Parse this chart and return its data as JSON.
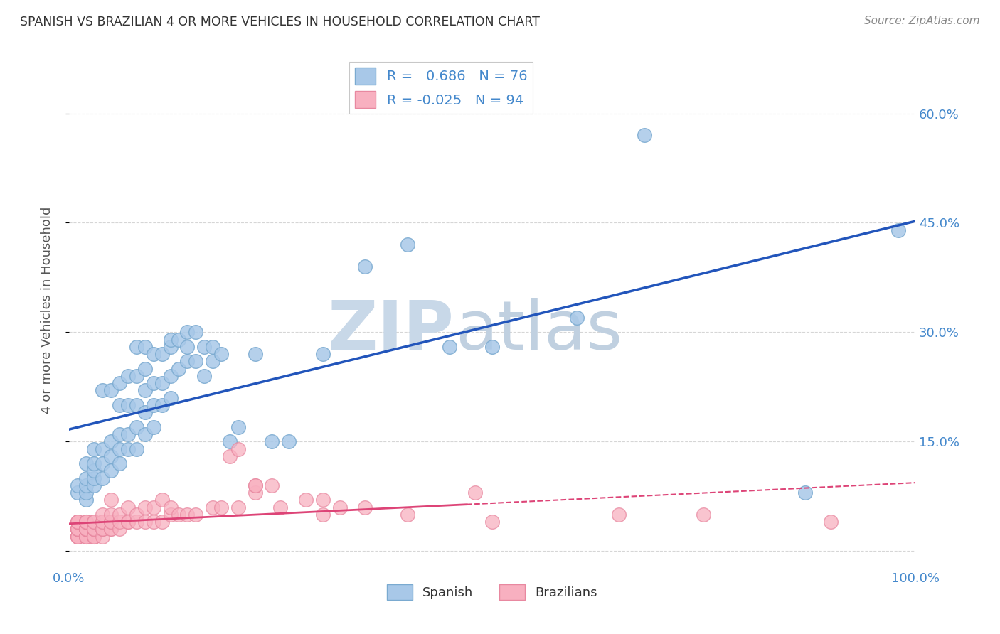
{
  "title": "SPANISH VS BRAZILIAN 4 OR MORE VEHICLES IN HOUSEHOLD CORRELATION CHART",
  "source": "Source: ZipAtlas.com",
  "ylabel": "4 or more Vehicles in Household",
  "xlim": [
    0.0,
    1.0
  ],
  "ylim": [
    -0.02,
    0.68
  ],
  "ytick_positions": [
    0.0,
    0.15,
    0.3,
    0.45,
    0.6
  ],
  "ytick_labels": [
    "",
    "15.0%",
    "30.0%",
    "45.0%",
    "60.0%"
  ],
  "spanish_R": 0.686,
  "spanish_N": 76,
  "brazilian_R": -0.025,
  "brazilian_N": 94,
  "spanish_color": "#a8c8e8",
  "spanish_edge": "#7aaad0",
  "brazilian_color": "#f8b0c0",
  "brazilian_edge": "#e888a0",
  "trendline_spanish_color": "#2255bb",
  "trendline_brazilian_color": "#dd4477",
  "watermark_zip_color": "#c8d8e8",
  "watermark_atlas_color": "#c0d0e0",
  "legend_label_spanish": "Spanish",
  "legend_label_brazilian": "Brazilians",
  "spanish_x": [
    0.01,
    0.01,
    0.02,
    0.02,
    0.02,
    0.02,
    0.02,
    0.03,
    0.03,
    0.03,
    0.03,
    0.03,
    0.04,
    0.04,
    0.04,
    0.04,
    0.05,
    0.05,
    0.05,
    0.05,
    0.06,
    0.06,
    0.06,
    0.06,
    0.06,
    0.07,
    0.07,
    0.07,
    0.07,
    0.08,
    0.08,
    0.08,
    0.08,
    0.08,
    0.09,
    0.09,
    0.09,
    0.09,
    0.09,
    0.1,
    0.1,
    0.1,
    0.1,
    0.11,
    0.11,
    0.11,
    0.12,
    0.12,
    0.12,
    0.12,
    0.13,
    0.13,
    0.14,
    0.14,
    0.14,
    0.15,
    0.15,
    0.16,
    0.16,
    0.17,
    0.17,
    0.18,
    0.19,
    0.2,
    0.22,
    0.24,
    0.26,
    0.3,
    0.35,
    0.4,
    0.45,
    0.5,
    0.6,
    0.68,
    0.87,
    0.98
  ],
  "spanish_y": [
    0.08,
    0.09,
    0.07,
    0.08,
    0.09,
    0.1,
    0.12,
    0.09,
    0.1,
    0.11,
    0.12,
    0.14,
    0.1,
    0.12,
    0.14,
    0.22,
    0.11,
    0.13,
    0.15,
    0.22,
    0.12,
    0.14,
    0.16,
    0.2,
    0.23,
    0.14,
    0.16,
    0.2,
    0.24,
    0.14,
    0.17,
    0.2,
    0.24,
    0.28,
    0.16,
    0.19,
    0.22,
    0.25,
    0.28,
    0.17,
    0.2,
    0.23,
    0.27,
    0.2,
    0.23,
    0.27,
    0.21,
    0.24,
    0.28,
    0.29,
    0.25,
    0.29,
    0.26,
    0.28,
    0.3,
    0.26,
    0.3,
    0.24,
    0.28,
    0.26,
    0.28,
    0.27,
    0.15,
    0.17,
    0.27,
    0.15,
    0.15,
    0.27,
    0.39,
    0.42,
    0.28,
    0.28,
    0.32,
    0.57,
    0.08,
    0.44
  ],
  "brazilian_x": [
    0.01,
    0.01,
    0.01,
    0.01,
    0.01,
    0.01,
    0.01,
    0.01,
    0.01,
    0.01,
    0.01,
    0.01,
    0.01,
    0.02,
    0.02,
    0.02,
    0.02,
    0.02,
    0.02,
    0.02,
    0.02,
    0.02,
    0.02,
    0.02,
    0.02,
    0.02,
    0.02,
    0.02,
    0.02,
    0.02,
    0.03,
    0.03,
    0.03,
    0.03,
    0.03,
    0.03,
    0.03,
    0.03,
    0.03,
    0.03,
    0.03,
    0.04,
    0.04,
    0.04,
    0.04,
    0.04,
    0.04,
    0.04,
    0.05,
    0.05,
    0.05,
    0.05,
    0.05,
    0.05,
    0.06,
    0.06,
    0.06,
    0.07,
    0.07,
    0.07,
    0.08,
    0.08,
    0.09,
    0.09,
    0.1,
    0.1,
    0.11,
    0.11,
    0.12,
    0.12,
    0.13,
    0.14,
    0.15,
    0.17,
    0.18,
    0.19,
    0.2,
    0.2,
    0.22,
    0.22,
    0.22,
    0.24,
    0.25,
    0.28,
    0.3,
    0.3,
    0.32,
    0.35,
    0.4,
    0.48,
    0.5,
    0.65,
    0.75,
    0.9
  ],
  "brazilian_y": [
    0.02,
    0.02,
    0.02,
    0.02,
    0.03,
    0.03,
    0.03,
    0.03,
    0.03,
    0.03,
    0.04,
    0.04,
    0.04,
    0.02,
    0.02,
    0.02,
    0.02,
    0.02,
    0.03,
    0.03,
    0.03,
    0.03,
    0.03,
    0.03,
    0.03,
    0.04,
    0.04,
    0.04,
    0.04,
    0.04,
    0.02,
    0.02,
    0.02,
    0.03,
    0.03,
    0.03,
    0.03,
    0.03,
    0.03,
    0.04,
    0.04,
    0.02,
    0.03,
    0.03,
    0.03,
    0.04,
    0.04,
    0.05,
    0.03,
    0.03,
    0.04,
    0.04,
    0.05,
    0.07,
    0.03,
    0.04,
    0.05,
    0.04,
    0.04,
    0.06,
    0.04,
    0.05,
    0.04,
    0.06,
    0.04,
    0.06,
    0.04,
    0.07,
    0.05,
    0.06,
    0.05,
    0.05,
    0.05,
    0.06,
    0.06,
    0.13,
    0.06,
    0.14,
    0.08,
    0.09,
    0.09,
    0.09,
    0.06,
    0.07,
    0.07,
    0.05,
    0.06,
    0.06,
    0.05,
    0.08,
    0.04,
    0.05,
    0.05,
    0.04
  ],
  "background_color": "#ffffff",
  "grid_color": "#cccccc",
  "title_color": "#333333",
  "axis_label_color": "#555555",
  "tick_label_color": "#4488cc"
}
